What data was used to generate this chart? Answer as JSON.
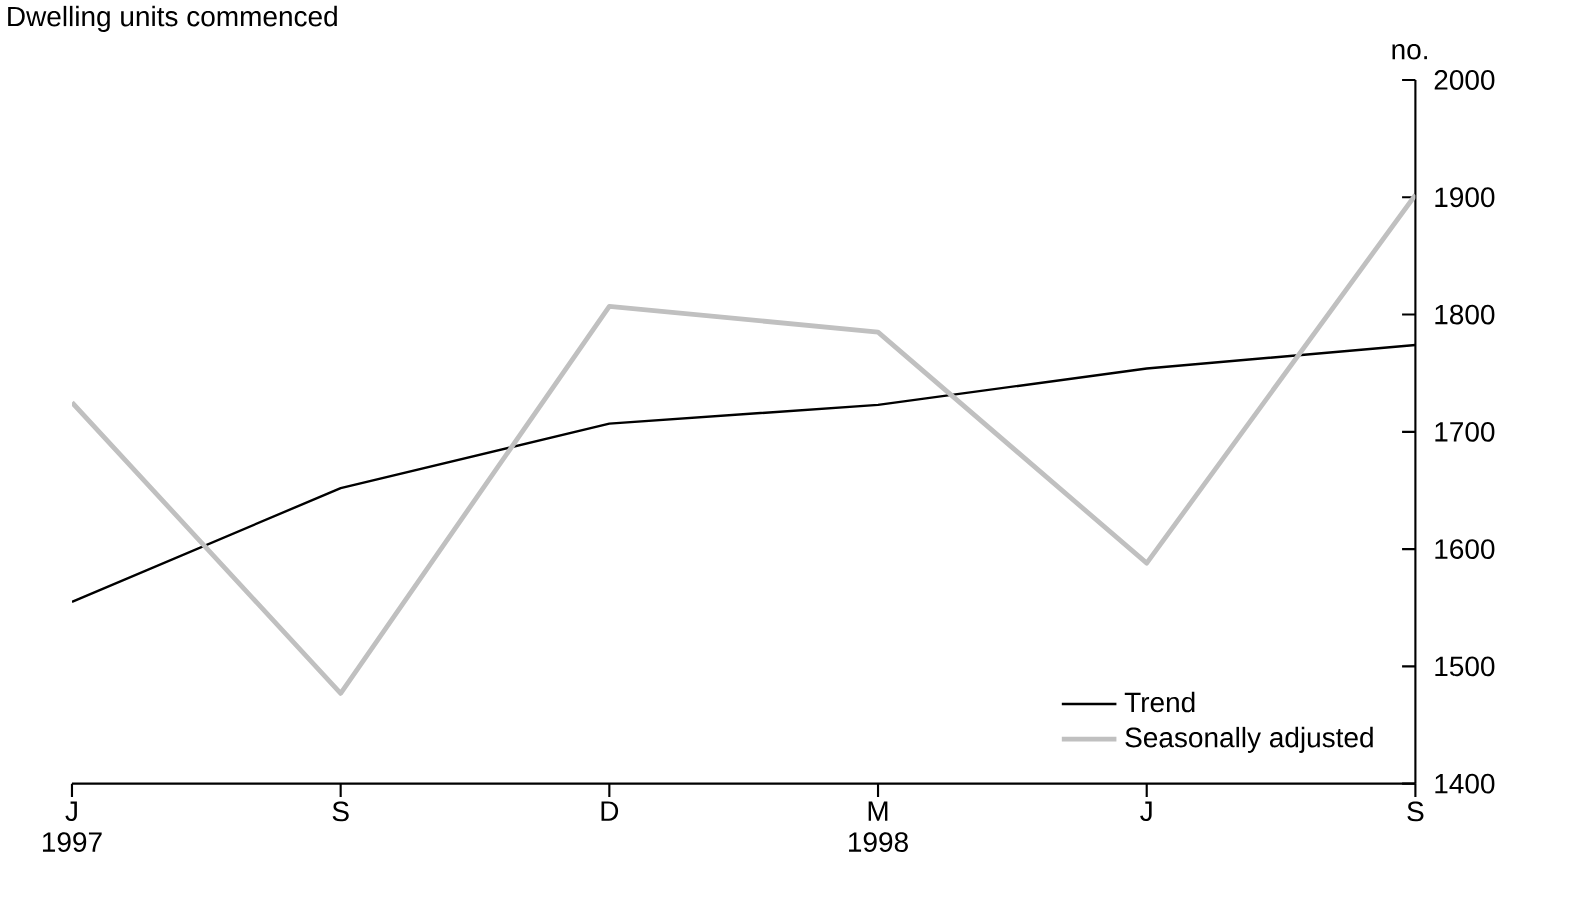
{
  "chart_data": {
    "type": "line",
    "title": "Dwelling units commenced",
    "ylabel": "no.",
    "categories": [
      "J",
      "S",
      "D",
      "M",
      "J",
      "S"
    ],
    "series": [
      {
        "name": "Trend",
        "color": "#000000",
        "values": [
          1555,
          1652,
          1707,
          1723,
          1754,
          1774
        ]
      },
      {
        "name": "Seasonally adjusted",
        "color": "#c0c0c0",
        "values": [
          1725,
          1477,
          1807,
          1785,
          1588,
          1902
        ]
      }
    ],
    "ylim": [
      1400,
      2000
    ],
    "yticks": [
      1400,
      1500,
      1600,
      1700,
      1800,
      1900,
      2000
    ],
    "annotations": [
      "1997",
      "1998"
    ],
    "legend": "bottom right",
    "grid": false,
    "marker": "none"
  }
}
